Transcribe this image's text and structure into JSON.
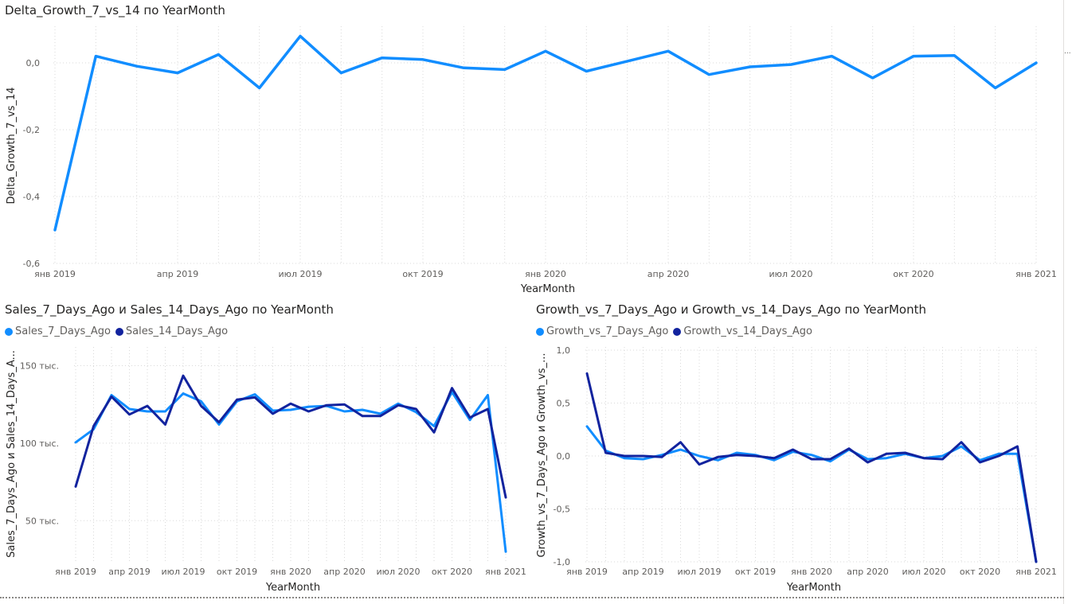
{
  "side_pane": {
    "label": "..."
  },
  "colors": {
    "light": "#118DFF",
    "dark": "#12239E",
    "grid": "#d9d9d9",
    "tick": "#605e5c"
  },
  "charts": [
    {
      "title": "Delta_Growth_7_vs_14 по YearMonth",
      "legend": []
    },
    {
      "title": "Sales_7_Days_Ago и Sales_14_Days_Ago по YearMonth",
      "legend": [
        {
          "name": "Sales_7_Days_Ago",
          "color": "#118DFF"
        },
        {
          "name": "Sales_14_Days_Ago",
          "color": "#12239E"
        }
      ]
    },
    {
      "title": "Growth_vs_7_Days_Ago и Growth_vs_14_Days_Ago по YearMonth",
      "legend": [
        {
          "name": "Growth_vs_7_Days_Ago",
          "color": "#118DFF"
        },
        {
          "name": "Growth_vs_14_Days_Ago",
          "color": "#12239E"
        }
      ]
    }
  ],
  "chart_data": [
    {
      "type": "line",
      "title": "Delta_Growth_7_vs_14 по YearMonth",
      "xlabel": "YearMonth",
      "ylabel": "Delta_Growth_7_vs_14",
      "ylim": [
        -0.6,
        0.1
      ],
      "yticks": [
        0.0,
        -0.2,
        -0.4,
        -0.6
      ],
      "ytick_labels": [
        "0,0",
        "-0,2",
        "-0,4",
        "-0,6"
      ],
      "xticks": [
        0,
        3,
        6,
        9,
        12,
        15,
        18,
        21,
        24
      ],
      "xtick_labels": [
        "янв 2019",
        "апр 2019",
        "июл 2019",
        "окт 2019",
        "янв 2020",
        "апр 2020",
        "июл 2020",
        "окт 2020",
        "янв 2021"
      ],
      "grid": true,
      "x_count": 25,
      "series": [
        {
          "color": "#118DFF",
          "values": [
            -0.5,
            0.02,
            -0.01,
            -0.03,
            0.025,
            -0.075,
            0.08,
            -0.03,
            0.015,
            0.01,
            -0.015,
            -0.02,
            0.035,
            -0.025,
            0.005,
            0.035,
            -0.035,
            -0.012,
            -0.005,
            0.02,
            -0.045,
            0.02,
            0.022,
            -0.075,
            0.0
          ]
        }
      ]
    },
    {
      "type": "line",
      "title": "Sales_7_Days_Ago и Sales_14_Days_Ago по YearMonth",
      "xlabel": "YearMonth",
      "ylabel": "Sales_7_Days_Ago и Sales_14_Days_A...",
      "ylim": [
        25000,
        160000
      ],
      "yticks": [
        150000,
        100000,
        50000
      ],
      "ytick_labels": [
        "150 тыс.",
        "100 тыс.",
        "50 тыс."
      ],
      "xticks": [
        0,
        3,
        6,
        9,
        12,
        15,
        18,
        21,
        24
      ],
      "xtick_labels": [
        "янв 2019",
        "апр 2019",
        "июл 2019",
        "окт 2019",
        "янв 2020",
        "апр 2020",
        "июл 2020",
        "окт 2020",
        "янв 2021"
      ],
      "grid": true,
      "x_count": 25,
      "series": [
        {
          "name": "Sales_7_Days_Ago",
          "color": "#118DFF",
          "values": [
            100500,
            109000,
            131000,
            122000,
            120500,
            120500,
            132000,
            127000,
            112000,
            127000,
            131500,
            121000,
            121500,
            123500,
            124000,
            120500,
            121500,
            119000,
            125500,
            120000,
            111000,
            133000,
            115000,
            131000,
            30000
          ]
        },
        {
          "name": "Sales_14_Days_Ago",
          "color": "#12239E",
          "values": [
            72000,
            111000,
            130000,
            118500,
            124000,
            112000,
            143500,
            124000,
            113500,
            128000,
            129500,
            119000,
            125500,
            120500,
            124500,
            125000,
            117500,
            117500,
            124500,
            122000,
            107000,
            135500,
            116500,
            122000,
            65000
          ]
        }
      ]
    },
    {
      "type": "line",
      "title": "Growth_vs_7_Days_Ago и Growth_vs_14_Days_Ago по YearMonth",
      "xlabel": "YearMonth",
      "ylabel": "Growth_vs_7_Days_Ago и Growth_vs_...",
      "ylim": [
        -1.0,
        1.0
      ],
      "yticks": [
        1.0,
        0.5,
        0.0,
        -0.5,
        -1.0
      ],
      "ytick_labels": [
        "1,0",
        "0,5",
        "0,0",
        "-0,5",
        "-1,0"
      ],
      "xticks": [
        0,
        3,
        6,
        9,
        12,
        15,
        18,
        21,
        24
      ],
      "xtick_labels": [
        "янв 2019",
        "апр 2019",
        "июл 2019",
        "окт 2019",
        "янв 2020",
        "апр 2020",
        "июл 2020",
        "окт 2020",
        "янв 2021"
      ],
      "grid": true,
      "x_count": 25,
      "series": [
        {
          "name": "Growth_vs_7_Days_Ago",
          "color": "#118DFF",
          "values": [
            0.28,
            0.05,
            -0.02,
            -0.03,
            0.01,
            0.06,
            0.0,
            -0.04,
            0.03,
            0.01,
            -0.04,
            0.04,
            0.01,
            -0.05,
            0.06,
            -0.03,
            -0.02,
            0.02,
            -0.02,
            0.0,
            0.09,
            -0.04,
            0.02,
            0.02,
            -1.0
          ]
        },
        {
          "name": "Growth_vs_14_Days_Ago",
          "color": "#12239E",
          "values": [
            0.78,
            0.03,
            0.0,
            0.0,
            -0.01,
            0.13,
            -0.08,
            -0.01,
            0.01,
            0.0,
            -0.02,
            0.06,
            -0.03,
            -0.03,
            0.07,
            -0.06,
            0.02,
            0.03,
            -0.02,
            -0.03,
            0.13,
            -0.06,
            0.0,
            0.09,
            -1.0
          ]
        }
      ]
    }
  ]
}
